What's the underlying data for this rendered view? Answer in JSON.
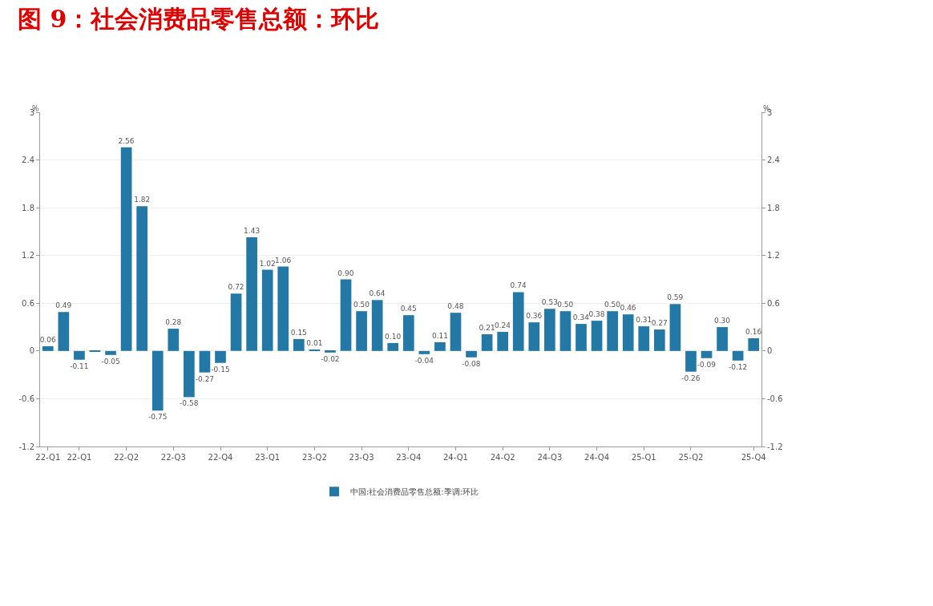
{
  "chart_data": {
    "type": "bar",
    "title": "图 9：社会消费品零售总额：环比",
    "ylabel": "%",
    "y2label": "%",
    "categories": [
      "22-Q1",
      null,
      "22-Q1",
      null,
      null,
      "22-Q2",
      null,
      null,
      "22-Q3",
      null,
      null,
      "22-Q4",
      null,
      null,
      "23-Q1",
      null,
      null,
      "23-Q2",
      null,
      null,
      "23-Q3",
      null,
      null,
      "23-Q4",
      null,
      null,
      "24-Q1",
      null,
      null,
      "24-Q2",
      null,
      null,
      "24-Q3",
      null,
      null,
      "24-Q4",
      null,
      null,
      "25-Q1",
      null,
      null,
      "25-Q2",
      null,
      null,
      null,
      "25-Q4"
    ],
    "series": [
      {
        "name": "中国:社会消费品零售总额:季调:环比",
        "color": "#2378a6",
        "values": [
          0.06,
          0.49,
          -0.11,
          -0.01,
          -0.05,
          2.56,
          1.82,
          -0.75,
          0.28,
          -0.58,
          -0.27,
          -0.15,
          0.72,
          1.43,
          1.02,
          1.06,
          0.15,
          0.01,
          -0.02,
          0.9,
          0.5,
          0.64,
          0.1,
          0.45,
          -0.04,
          0.11,
          0.48,
          -0.08,
          0.21,
          0.24,
          0.74,
          0.36,
          0.53,
          0.5,
          0.34,
          0.38,
          0.5,
          0.46,
          0.31,
          0.27,
          0.59,
          -0.26,
          -0.09,
          0.3,
          -0.12,
          0.16
        ],
        "value_labels": [
          "0.06",
          "0.49",
          "-0.11",
          null,
          "-0.05",
          "2.56",
          "1.82",
          "-0.75",
          "0.28",
          "-0.58",
          "-0.27",
          "-0.15",
          "0.72",
          "1.43",
          "1.02",
          "1.06",
          "0.15",
          "0.01",
          "-0.02",
          "0.90",
          "0.50",
          "0.64",
          "0.10",
          "0.45",
          "-0.04",
          "0.11",
          "0.48",
          "-0.08",
          "0.21",
          "0.24",
          "0.74",
          "0.36",
          "0.53",
          "0.50",
          "0.34",
          "0.38",
          "0.50",
          "0.46",
          "0.31",
          "0.27",
          "0.59",
          "-0.26",
          "-0.09",
          "0.30",
          "-0.12",
          "0.16"
        ]
      }
    ],
    "ylim": [
      -1.2,
      3
    ],
    "yticks": [
      -1.2,
      -0.6,
      0,
      0.6,
      1.2,
      1.8,
      2.4,
      3
    ],
    "y2lim": [
      -1.2,
      3
    ],
    "y2ticks": [
      -1.2,
      -0.6,
      0,
      0.6,
      1.2,
      1.8,
      2.4,
      3
    ],
    "grid": "y",
    "legend": "bottom"
  }
}
